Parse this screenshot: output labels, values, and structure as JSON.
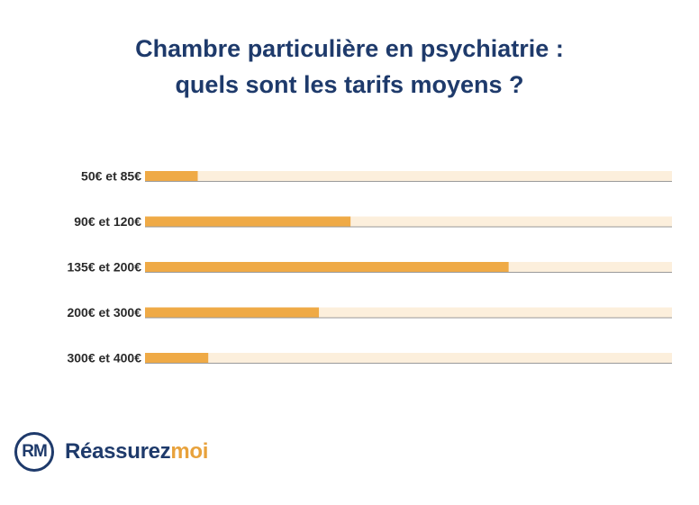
{
  "title": {
    "line1": "Chambre particulière en psychiatrie :",
    "line2": "quels sont les tarifs moyens ?"
  },
  "chart_data": {
    "type": "bar",
    "orientation": "horizontal",
    "title": "Chambre particulière en psychiatrie : quels sont les tarifs moyens ?",
    "categories": [
      "50€ et 85€",
      "90€ et 120€",
      "135€ et 200€",
      "200€ et 300€",
      "300€ et 400€"
    ],
    "values": [
      10,
      39,
      69,
      33,
      12
    ],
    "unit": "percent of track (no numeric labels shown)",
    "xlim": [
      0,
      100
    ],
    "xlabel": "",
    "ylabel": "",
    "grid": false,
    "colors": {
      "bar": "#efaa46",
      "track": "#fcefdc",
      "track_shadow": "#9a9a9a"
    }
  },
  "brand": {
    "mark": "RM",
    "name_main": "Réassurez",
    "name_accent": "moi",
    "colors": {
      "primary": "#1e3a6b",
      "accent": "#e8a23c"
    }
  }
}
